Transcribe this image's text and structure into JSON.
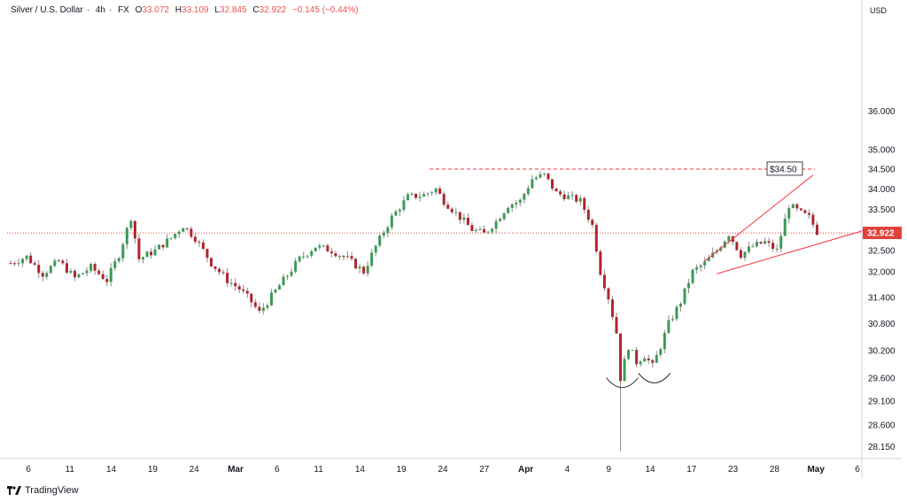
{
  "header": {
    "symbol": "Silver / U.S. Dollar",
    "sep1": "·",
    "interval": "4h",
    "sep2": "·",
    "source": "FX",
    "ohlc": [
      {
        "key": "O",
        "value": "33.072"
      },
      {
        "key": "H",
        "value": "33.109"
      },
      {
        "key": "L",
        "value": "32.845"
      },
      {
        "key": "C",
        "value": "32.922"
      }
    ],
    "change": "−0.145 (−0.44%)"
  },
  "currency_label": "USD",
  "brand": "TradingView",
  "price_line_label": "32.922",
  "resistance_label": "$34.50",
  "colors": {
    "up": "#26a69a",
    "up_body": "#3b9b55",
    "down": "#b0252c",
    "wick": "#8a8a8a",
    "drawing": "#f23645",
    "price_line": "#e0413a",
    "axis_text": "#131722",
    "grid": "#ebebeb"
  },
  "chart_data": {
    "type": "candlestick",
    "title": "Silver / U.S. Dollar · 4h · FX",
    "y_scale": "log",
    "ylim": [
      27.9,
      38.5
    ],
    "y_ticks": [
      "36.000",
      "35.000",
      "34.500",
      "34.000",
      "33.500",
      "32.922",
      "32.500",
      "32.000",
      "31.400",
      "30.800",
      "30.200",
      "29.600",
      "29.100",
      "28.600",
      "28.150"
    ],
    "x_ticks": [
      "6",
      "11",
      "14",
      "19",
      "24",
      "Mar",
      "6",
      "11",
      "14",
      "19",
      "24",
      "27",
      "Apr",
      "4",
      "9",
      "14",
      "17",
      "23",
      "28",
      "May",
      "6"
    ],
    "last_close": 32.922,
    "resistance_level": 34.5,
    "annotations": [
      "$34.50",
      "rising wedge",
      "double bottom"
    ],
    "path_points": [
      [
        0,
        32.2
      ],
      [
        4,
        32.35
      ],
      [
        8,
        31.95
      ],
      [
        12,
        32.25
      ],
      [
        16,
        31.85
      ],
      [
        20,
        32.1
      ],
      [
        24,
        31.8
      ],
      [
        27,
        32.4
      ],
      [
        30,
        33.3
      ],
      [
        32,
        32.3
      ],
      [
        36,
        32.5
      ],
      [
        40,
        32.8
      ],
      [
        43,
        33.1
      ],
      [
        46,
        32.8
      ],
      [
        50,
        32.2
      ],
      [
        54,
        31.8
      ],
      [
        57,
        31.6
      ],
      [
        60,
        31.3
      ],
      [
        62,
        31.05
      ],
      [
        64,
        31.3
      ],
      [
        68,
        31.8
      ],
      [
        72,
        32.3
      ],
      [
        76,
        32.6
      ],
      [
        80,
        32.5
      ],
      [
        84,
        32.3
      ],
      [
        88,
        32.0
      ],
      [
        91,
        32.6
      ],
      [
        95,
        33.3
      ],
      [
        99,
        33.8
      ],
      [
        103,
        33.85
      ],
      [
        106,
        34.0
      ],
      [
        108,
        33.7
      ],
      [
        112,
        33.3
      ],
      [
        115,
        33.0
      ],
      [
        118,
        32.9
      ],
      [
        121,
        33.2
      ],
      [
        124,
        33.6
      ],
      [
        127,
        33.7
      ],
      [
        130,
        34.25
      ],
      [
        133,
        34.35
      ],
      [
        136,
        33.9
      ],
      [
        139,
        33.8
      ],
      [
        142,
        33.7
      ],
      [
        145,
        33.1
      ],
      [
        147,
        32.0
      ],
      [
        149,
        31.4
      ],
      [
        151,
        30.6
      ],
      [
        152,
        29.6
      ],
      [
        154,
        30.3
      ],
      [
        156,
        29.95
      ],
      [
        158,
        30.1
      ],
      [
        160,
        29.85
      ],
      [
        162,
        30.3
      ],
      [
        164,
        30.8
      ],
      [
        167,
        31.3
      ],
      [
        170,
        32.0
      ],
      [
        173,
        32.2
      ],
      [
        176,
        32.5
      ],
      [
        179,
        32.9
      ],
      [
        182,
        32.4
      ],
      [
        185,
        32.6
      ],
      [
        188,
        32.7
      ],
      [
        191,
        32.5
      ],
      [
        194,
        33.6
      ],
      [
        197,
        33.4
      ],
      [
        199,
        33.3
      ],
      [
        201,
        32.95
      ]
    ]
  }
}
